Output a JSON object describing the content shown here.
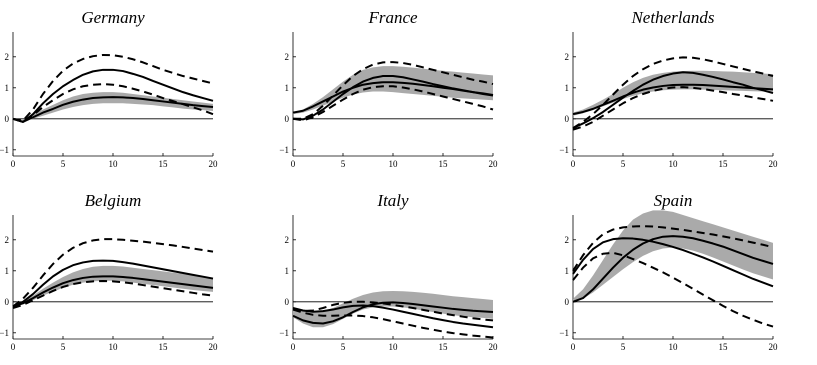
{
  "chart_data": [
    {
      "type": "line",
      "title": "Germany",
      "x": [
        0,
        1,
        2,
        3,
        4,
        5,
        6,
        7,
        8,
        9,
        10,
        11,
        12,
        13,
        14,
        15,
        16,
        17,
        18,
        19,
        20
      ],
      "xlim": [
        0,
        20
      ],
      "ylim": [
        -1.2,
        2.8
      ],
      "xticks": [
        0,
        5,
        10,
        15,
        20
      ],
      "yticks": [
        -1,
        0,
        1,
        2
      ],
      "band": {
        "lower": [
          0.0,
          -0.08,
          0.0,
          0.1,
          0.2,
          0.3,
          0.38,
          0.44,
          0.48,
          0.5,
          0.5,
          0.5,
          0.48,
          0.46,
          0.44,
          0.4,
          0.37,
          0.33,
          0.3,
          0.28,
          0.25
        ],
        "upper": [
          0.0,
          -0.04,
          0.15,
          0.3,
          0.45,
          0.6,
          0.72,
          0.8,
          0.84,
          0.86,
          0.86,
          0.84,
          0.8,
          0.76,
          0.72,
          0.68,
          0.64,
          0.6,
          0.56,
          0.52,
          0.48
        ]
      },
      "series": [
        {
          "style": "solid",
          "values": [
            0.0,
            -0.1,
            0.05,
            0.2,
            0.32,
            0.45,
            0.55,
            0.62,
            0.67,
            0.69,
            0.7,
            0.69,
            0.67,
            0.64,
            0.6,
            0.56,
            0.52,
            0.48,
            0.44,
            0.41,
            0.38
          ]
        },
        {
          "style": "solid",
          "values": [
            0.0,
            -0.1,
            0.15,
            0.5,
            0.8,
            1.05,
            1.25,
            1.42,
            1.53,
            1.58,
            1.58,
            1.54,
            1.45,
            1.35,
            1.22,
            1.1,
            0.98,
            0.86,
            0.76,
            0.67,
            0.58
          ]
        },
        {
          "style": "dashed",
          "values": [
            0.0,
            -0.06,
            0.3,
            0.8,
            1.22,
            1.55,
            1.78,
            1.93,
            2.02,
            2.06,
            2.05,
            2.0,
            1.92,
            1.82,
            1.7,
            1.58,
            1.48,
            1.38,
            1.3,
            1.22,
            1.14
          ]
        },
        {
          "style": "dashed",
          "values": [
            0.0,
            -0.1,
            0.12,
            0.38,
            0.6,
            0.8,
            0.95,
            1.05,
            1.1,
            1.12,
            1.1,
            1.05,
            0.97,
            0.88,
            0.78,
            0.67,
            0.57,
            0.47,
            0.37,
            0.27,
            0.15
          ]
        }
      ]
    },
    {
      "type": "line",
      "title": "France",
      "x": [
        0,
        1,
        2,
        3,
        4,
        5,
        6,
        7,
        8,
        9,
        10,
        11,
        12,
        13,
        14,
        15,
        16,
        17,
        18,
        19,
        20
      ],
      "xlim": [
        0,
        20
      ],
      "ylim": [
        -1.2,
        2.8
      ],
      "xticks": [
        0,
        5,
        10,
        15,
        20
      ],
      "yticks": [
        -1,
        0,
        1,
        2
      ],
      "band": {
        "lower": [
          0.15,
          0.2,
          0.3,
          0.42,
          0.55,
          0.68,
          0.78,
          0.85,
          0.88,
          0.88,
          0.86,
          0.83,
          0.8,
          0.77,
          0.74,
          0.71,
          0.68,
          0.66,
          0.64,
          0.62,
          0.6
        ],
        "upper": [
          0.2,
          0.3,
          0.48,
          0.7,
          0.95,
          1.2,
          1.42,
          1.58,
          1.66,
          1.7,
          1.7,
          1.68,
          1.65,
          1.62,
          1.58,
          1.55,
          1.52,
          1.49,
          1.46,
          1.43,
          1.4
        ]
      },
      "series": [
        {
          "style": "solid",
          "values": [
            0.2,
            0.26,
            0.4,
            0.56,
            0.72,
            0.88,
            1.0,
            1.1,
            1.15,
            1.18,
            1.18,
            1.16,
            1.13,
            1.09,
            1.05,
            1.0,
            0.96,
            0.91,
            0.86,
            0.82,
            0.77
          ]
        },
        {
          "style": "solid",
          "values": [
            0.0,
            -0.02,
            0.1,
            0.3,
            0.55,
            0.8,
            1.02,
            1.2,
            1.32,
            1.38,
            1.38,
            1.34,
            1.27,
            1.2,
            1.12,
            1.05,
            0.98,
            0.92,
            0.86,
            0.8,
            0.75
          ]
        },
        {
          "style": "dashed",
          "values": [
            0.0,
            0.0,
            0.15,
            0.42,
            0.75,
            1.08,
            1.38,
            1.6,
            1.75,
            1.82,
            1.83,
            1.8,
            1.74,
            1.66,
            1.58,
            1.5,
            1.42,
            1.34,
            1.26,
            1.2,
            1.12
          ]
        },
        {
          "style": "dashed",
          "values": [
            0.0,
            -0.05,
            0.05,
            0.22,
            0.42,
            0.62,
            0.8,
            0.94,
            1.02,
            1.05,
            1.05,
            1.01,
            0.95,
            0.88,
            0.8,
            0.72,
            0.64,
            0.56,
            0.48,
            0.4,
            0.3
          ]
        }
      ]
    },
    {
      "type": "line",
      "title": "Netherlands",
      "x": [
        0,
        1,
        2,
        3,
        4,
        5,
        6,
        7,
        8,
        9,
        10,
        11,
        12,
        13,
        14,
        15,
        16,
        17,
        18,
        19,
        20
      ],
      "xlim": [
        0,
        20
      ],
      "ylim": [
        -1.2,
        2.8
      ],
      "xticks": [
        0,
        5,
        10,
        15,
        20
      ],
      "yticks": [
        -1,
        0,
        1,
        2
      ],
      "band": {
        "lower": [
          0.1,
          0.18,
          0.28,
          0.4,
          0.52,
          0.64,
          0.74,
          0.82,
          0.88,
          0.92,
          0.94,
          0.95,
          0.95,
          0.94,
          0.93,
          0.92,
          0.91,
          0.9,
          0.89,
          0.88,
          0.87
        ],
        "upper": [
          0.2,
          0.3,
          0.45,
          0.62,
          0.8,
          1.0,
          1.18,
          1.32,
          1.42,
          1.48,
          1.52,
          1.54,
          1.55,
          1.55,
          1.54,
          1.53,
          1.52,
          1.5,
          1.48,
          1.46,
          1.44
        ]
      },
      "series": [
        {
          "style": "solid",
          "values": [
            0.15,
            0.22,
            0.32,
            0.45,
            0.58,
            0.72,
            0.84,
            0.94,
            1.01,
            1.06,
            1.09,
            1.1,
            1.1,
            1.09,
            1.07,
            1.05,
            1.03,
            1.01,
            0.99,
            0.97,
            0.95
          ]
        },
        {
          "style": "solid",
          "values": [
            -0.3,
            -0.15,
            0.02,
            0.22,
            0.45,
            0.68,
            0.9,
            1.1,
            1.26,
            1.38,
            1.46,
            1.5,
            1.48,
            1.42,
            1.35,
            1.27,
            1.18,
            1.1,
            1.0,
            0.92,
            0.83
          ]
        },
        {
          "style": "dashed",
          "values": [
            -0.3,
            -0.1,
            0.15,
            0.45,
            0.78,
            1.1,
            1.38,
            1.6,
            1.77,
            1.88,
            1.95,
            1.98,
            1.97,
            1.92,
            1.85,
            1.77,
            1.69,
            1.61,
            1.53,
            1.46,
            1.38
          ]
        },
        {
          "style": "dashed",
          "values": [
            -0.35,
            -0.25,
            -0.1,
            0.1,
            0.3,
            0.5,
            0.67,
            0.8,
            0.9,
            0.97,
            1.01,
            1.02,
            1.0,
            0.96,
            0.91,
            0.86,
            0.8,
            0.75,
            0.69,
            0.64,
            0.58
          ]
        }
      ]
    },
    {
      "type": "line",
      "title": "Belgium",
      "x": [
        0,
        1,
        2,
        3,
        4,
        5,
        6,
        7,
        8,
        9,
        10,
        11,
        12,
        13,
        14,
        15,
        16,
        17,
        18,
        19,
        20
      ],
      "xlim": [
        0,
        20
      ],
      "ylim": [
        -1.2,
        2.8
      ],
      "xticks": [
        0,
        5,
        10,
        15,
        20
      ],
      "yticks": [
        -1,
        0,
        1,
        2
      ],
      "band": {
        "lower": [
          -0.15,
          -0.08,
          0.05,
          0.2,
          0.33,
          0.45,
          0.55,
          0.62,
          0.66,
          0.68,
          0.68,
          0.66,
          0.62,
          0.58,
          0.54,
          0.5,
          0.46,
          0.42,
          0.38,
          0.35,
          0.32
        ],
        "upper": [
          -0.1,
          0.0,
          0.2,
          0.42,
          0.62,
          0.8,
          0.95,
          1.06,
          1.13,
          1.16,
          1.16,
          1.14,
          1.1,
          1.06,
          1.02,
          0.98,
          0.94,
          0.9,
          0.86,
          0.82,
          0.78
        ]
      },
      "series": [
        {
          "style": "solid",
          "values": [
            -0.15,
            -0.05,
            0.12,
            0.3,
            0.46,
            0.6,
            0.7,
            0.77,
            0.81,
            0.82,
            0.82,
            0.8,
            0.77,
            0.73,
            0.69,
            0.65,
            0.61,
            0.57,
            0.53,
            0.49,
            0.45
          ]
        },
        {
          "style": "solid",
          "values": [
            -0.15,
            0.0,
            0.25,
            0.55,
            0.82,
            1.03,
            1.18,
            1.27,
            1.32,
            1.33,
            1.32,
            1.28,
            1.23,
            1.17,
            1.11,
            1.05,
            0.99,
            0.93,
            0.87,
            0.81,
            0.75
          ]
        },
        {
          "style": "dashed",
          "values": [
            -0.15,
            0.1,
            0.45,
            0.85,
            1.22,
            1.52,
            1.74,
            1.89,
            1.98,
            2.02,
            2.02,
            2.0,
            1.97,
            1.94,
            1.9,
            1.86,
            1.82,
            1.77,
            1.72,
            1.67,
            1.62
          ]
        },
        {
          "style": "dashed",
          "values": [
            -0.2,
            -0.1,
            0.05,
            0.2,
            0.35,
            0.48,
            0.57,
            0.63,
            0.66,
            0.67,
            0.66,
            0.63,
            0.59,
            0.54,
            0.49,
            0.44,
            0.39,
            0.34,
            0.29,
            0.24,
            0.2
          ]
        }
      ]
    },
    {
      "type": "line",
      "title": "Italy",
      "x": [
        0,
        1,
        2,
        3,
        4,
        5,
        6,
        7,
        8,
        9,
        10,
        11,
        12,
        13,
        14,
        15,
        16,
        17,
        18,
        19,
        20
      ],
      "xlim": [
        0,
        20
      ],
      "ylim": [
        -1.2,
        2.8
      ],
      "xticks": [
        0,
        5,
        10,
        15,
        20
      ],
      "yticks": [
        -1,
        0,
        1,
        2
      ],
      "band": {
        "lower": [
          -0.5,
          -0.7,
          -0.82,
          -0.82,
          -0.72,
          -0.55,
          -0.38,
          -0.25,
          -0.18,
          -0.15,
          -0.15,
          -0.18,
          -0.22,
          -0.28,
          -0.33,
          -0.38,
          -0.43,
          -0.47,
          -0.5,
          -0.52,
          -0.55
        ],
        "upper": [
          -0.25,
          -0.3,
          -0.35,
          -0.3,
          -0.2,
          -0.05,
          0.1,
          0.22,
          0.3,
          0.34,
          0.35,
          0.34,
          0.32,
          0.29,
          0.26,
          0.22,
          0.18,
          0.15,
          0.12,
          0.09,
          0.06
        ]
      },
      "series": [
        {
          "style": "solid",
          "values": [
            -0.45,
            -0.6,
            -0.68,
            -0.7,
            -0.63,
            -0.5,
            -0.33,
            -0.18,
            -0.08,
            -0.03,
            -0.02,
            -0.04,
            -0.07,
            -0.11,
            -0.15,
            -0.19,
            -0.23,
            -0.26,
            -0.29,
            -0.31,
            -0.33
          ]
        },
        {
          "style": "solid",
          "values": [
            -0.2,
            -0.28,
            -0.32,
            -0.3,
            -0.25,
            -0.18,
            -0.13,
            -0.12,
            -0.14,
            -0.19,
            -0.25,
            -0.32,
            -0.39,
            -0.46,
            -0.53,
            -0.59,
            -0.65,
            -0.7,
            -0.74,
            -0.78,
            -0.82
          ]
        },
        {
          "style": "dashed",
          "values": [
            -0.25,
            -0.3,
            -0.28,
            -0.2,
            -0.1,
            -0.03,
            0.0,
            0.0,
            -0.02,
            -0.05,
            -0.1,
            -0.15,
            -0.2,
            -0.26,
            -0.32,
            -0.38,
            -0.43,
            -0.48,
            -0.53,
            -0.57,
            -0.6
          ]
        },
        {
          "style": "dashed",
          "values": [
            -0.25,
            -0.35,
            -0.42,
            -0.45,
            -0.45,
            -0.44,
            -0.44,
            -0.46,
            -0.5,
            -0.56,
            -0.63,
            -0.7,
            -0.77,
            -0.84,
            -0.9,
            -0.96,
            -1.01,
            -1.05,
            -1.09,
            -1.12,
            -1.15
          ]
        }
      ]
    },
    {
      "type": "line",
      "title": "Spain",
      "x": [
        0,
        1,
        2,
        3,
        4,
        5,
        6,
        7,
        8,
        9,
        10,
        11,
        12,
        13,
        14,
        15,
        16,
        17,
        18,
        19,
        20
      ],
      "xlim": [
        0,
        20
      ],
      "ylim": [
        -1.2,
        2.8
      ],
      "xticks": [
        0,
        5,
        10,
        15,
        20
      ],
      "yticks": [
        -1,
        0,
        1,
        2
      ],
      "band": {
        "lower": [
          0.0,
          0.1,
          0.3,
          0.55,
          0.8,
          1.05,
          1.28,
          1.48,
          1.63,
          1.72,
          1.75,
          1.72,
          1.65,
          1.55,
          1.43,
          1.3,
          1.17,
          1.04,
          0.92,
          0.82,
          0.72
        ],
        "upper": [
          0.1,
          0.4,
          0.85,
          1.35,
          1.85,
          2.3,
          2.65,
          2.85,
          2.95,
          2.95,
          2.9,
          2.8,
          2.7,
          2.6,
          2.5,
          2.4,
          2.3,
          2.2,
          2.1,
          2.0,
          1.9
        ]
      },
      "series": [
        {
          "style": "solid",
          "values": [
            0.0,
            0.12,
            0.4,
            0.75,
            1.1,
            1.42,
            1.68,
            1.88,
            2.02,
            2.1,
            2.12,
            2.1,
            2.05,
            1.97,
            1.88,
            1.78,
            1.66,
            1.54,
            1.42,
            1.32,
            1.22
          ]
        },
        {
          "style": "solid",
          "values": [
            0.9,
            1.35,
            1.7,
            1.92,
            2.02,
            2.05,
            2.04,
            2.0,
            1.94,
            1.86,
            1.77,
            1.67,
            1.55,
            1.43,
            1.3,
            1.16,
            1.02,
            0.88,
            0.74,
            0.62,
            0.5
          ]
        },
        {
          "style": "dashed",
          "values": [
            1.0,
            1.5,
            1.9,
            2.18,
            2.33,
            2.4,
            2.43,
            2.44,
            2.43,
            2.4,
            2.36,
            2.32,
            2.27,
            2.22,
            2.17,
            2.11,
            2.05,
            1.98,
            1.91,
            1.84,
            1.76
          ]
        },
        {
          "style": "dashed",
          "values": [
            0.7,
            1.1,
            1.4,
            1.55,
            1.58,
            1.5,
            1.38,
            1.25,
            1.1,
            0.95,
            0.78,
            0.6,
            0.42,
            0.23,
            0.05,
            -0.13,
            -0.3,
            -0.45,
            -0.58,
            -0.7,
            -0.8
          ]
        }
      ]
    }
  ]
}
